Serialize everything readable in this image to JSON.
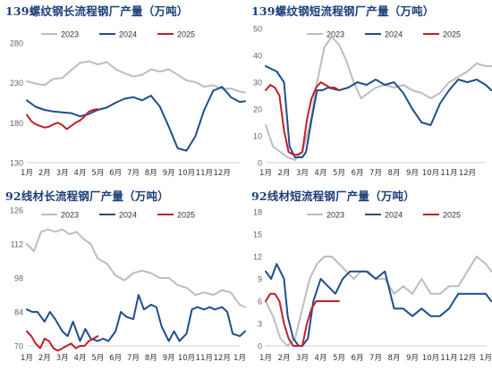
{
  "colors": {
    "y2023": "#bdbdbd",
    "y2024": "#1f4e8c",
    "y2025": "#c0202c",
    "title": "#1b3f78",
    "axis": "#666666"
  },
  "legend": [
    "2023",
    "2024",
    "2025"
  ],
  "months": [
    "1月",
    "2月",
    "3月",
    "4月",
    "5月",
    "6月",
    "7月",
    "8月",
    "9月",
    "10月",
    "11月",
    "12月",
    "1月"
  ],
  "chart_data": [
    {
      "type": "line",
      "title": "139螺纹钢长流程钢厂产量（万吨）",
      "ylim": [
        130,
        280
      ],
      "yticks": [
        130,
        180,
        230,
        280
      ],
      "xticks": [
        "1月",
        "2月",
        "3月",
        "4月",
        "5月",
        "6月",
        "7月",
        "8月",
        "9月",
        "10月",
        "11月",
        "12月"
      ],
      "series": [
        {
          "name": "2023",
          "x": [
            0,
            0.5,
            1,
            1.5,
            2,
            2.5,
            3,
            3.5,
            4,
            4.5,
            5,
            5.5,
            6,
            6.5,
            7,
            7.5,
            8,
            8.5,
            9,
            9.5,
            10,
            10.5,
            11,
            11.5,
            12,
            12.3
          ],
          "values": [
            232,
            229,
            227,
            235,
            236,
            246,
            255,
            257,
            253,
            256,
            247,
            242,
            238,
            240,
            247,
            244,
            247,
            240,
            233,
            231,
            225,
            227,
            222,
            223,
            219,
            218
          ]
        },
        {
          "name": "2024",
          "x": [
            0,
            0.5,
            1,
            1.5,
            2,
            2.5,
            3,
            3.5,
            4,
            4.5,
            5,
            5.5,
            6,
            6.5,
            7,
            7.5,
            8,
            8.5,
            9,
            9.5,
            10,
            10.5,
            11,
            11.5,
            12,
            12.3
          ],
          "values": [
            208,
            200,
            196,
            194,
            193,
            192,
            188,
            191,
            196,
            199,
            205,
            210,
            212,
            208,
            214,
            200,
            175,
            148,
            145,
            163,
            196,
            220,
            225,
            212,
            206,
            207
          ]
        },
        {
          "name": "2025",
          "x": [
            0,
            0.25,
            0.5,
            0.75,
            1,
            1.25,
            1.5,
            1.75,
            2,
            2.25,
            2.5,
            2.75,
            3,
            3.25,
            3.5,
            3.75,
            4
          ],
          "values": [
            190,
            182,
            178,
            176,
            174,
            175,
            178,
            180,
            177,
            172,
            176,
            180,
            183,
            188,
            194,
            196,
            197
          ]
        }
      ]
    },
    {
      "type": "line",
      "title": "139螺纹钢短流程钢厂产量（万吨）",
      "ylim": [
        0,
        50
      ],
      "yticks": [
        0,
        10,
        20,
        30,
        40,
        50
      ],
      "xticks": [
        "1月",
        "2月",
        "3月",
        "4月",
        "5月",
        "6月",
        "7月",
        "8月",
        "9月",
        "10月",
        "11月",
        "12月"
      ],
      "series": [
        {
          "name": "2023",
          "x": [
            0,
            0.4,
            0.8,
            1.2,
            1.6,
            2,
            2.4,
            2.8,
            3.2,
            3.6,
            4,
            4.4,
            4.8,
            5.2,
            5.6,
            6,
            6.5,
            7,
            7.5,
            8,
            8.5,
            9,
            9.5,
            10,
            10.5,
            11,
            11.5,
            12,
            12.3
          ],
          "values": [
            14,
            6,
            4,
            2,
            1,
            4,
            14,
            30,
            43,
            47,
            44,
            38,
            30,
            24,
            26,
            28,
            29,
            28,
            29,
            27,
            26,
            24,
            26,
            30,
            32,
            34,
            37,
            36,
            36
          ]
        },
        {
          "name": "2024",
          "x": [
            0,
            0.3,
            0.6,
            1,
            1.3,
            1.6,
            2,
            2.2,
            2.5,
            2.8,
            3.1,
            3.4,
            4,
            4.5,
            5,
            5.5,
            6,
            6.5,
            7,
            7.5,
            8,
            8.5,
            9,
            9.5,
            10,
            10.5,
            11,
            11.5,
            12,
            12.3
          ],
          "values": [
            36,
            35,
            34,
            30,
            6,
            2,
            2,
            4,
            16,
            27,
            27,
            28,
            27,
            28,
            30,
            29,
            31,
            29,
            30,
            26,
            20,
            15,
            14,
            22,
            27,
            31,
            30,
            31,
            29,
            27
          ]
        },
        {
          "name": "2025",
          "x": [
            0,
            0.25,
            0.5,
            0.75,
            1,
            1.25,
            1.5,
            1.75,
            2,
            2.25,
            2.5,
            2.75,
            3,
            3.25,
            3.5,
            3.75,
            4
          ],
          "values": [
            27,
            29,
            28,
            25,
            12,
            4,
            3,
            3,
            4,
            16,
            24,
            28,
            30,
            29,
            28,
            28,
            27
          ]
        }
      ]
    },
    {
      "type": "line",
      "title": "92线材长流程钢厂产量（万吨）",
      "ylim": [
        70,
        126
      ],
      "yticks": [
        70,
        84,
        98,
        112,
        126
      ],
      "xticks": [
        "1月",
        "2月",
        "3月",
        "4月",
        "5月",
        "6月",
        "7月",
        "8月",
        "9月",
        "10月",
        "11月",
        "12月",
        "1月"
      ],
      "series": [
        {
          "name": "2023",
          "x": [
            0,
            0.4,
            0.8,
            1.2,
            1.6,
            2,
            2.4,
            2.8,
            3.2,
            3.6,
            4,
            4.5,
            5,
            5.5,
            6,
            6.5,
            7,
            7.5,
            8,
            8.5,
            9,
            9.5,
            10,
            10.5,
            11,
            11.5,
            12,
            12.3
          ],
          "values": [
            112,
            109,
            117,
            118,
            117,
            118,
            116,
            117,
            114,
            112,
            106,
            104,
            99,
            97,
            100,
            101,
            100,
            98,
            98,
            95,
            94,
            91,
            92,
            91,
            93,
            92,
            87,
            86
          ]
        },
        {
          "name": "2024",
          "x": [
            0,
            0.3,
            0.6,
            1,
            1.3,
            1.6,
            2,
            2.3,
            2.6,
            3,
            3.3,
            3.6,
            4,
            4.3,
            4.6,
            5,
            5.3,
            5.6,
            6,
            6.3,
            6.6,
            7,
            7.3,
            7.6,
            8,
            8.3,
            8.6,
            9,
            9.3,
            9.6,
            10,
            10.3,
            10.6,
            11,
            11.3,
            11.6,
            12,
            12.3
          ],
          "values": [
            85,
            84,
            84,
            80,
            84,
            81,
            76,
            74,
            80,
            72,
            77,
            73,
            72,
            73,
            72,
            76,
            84,
            82,
            81,
            91,
            85,
            87,
            86,
            78,
            72,
            76,
            72,
            75,
            85,
            86,
            85,
            86,
            85,
            86,
            84,
            75,
            74,
            76
          ]
        },
        {
          "name": "2025",
          "x": [
            0,
            0.25,
            0.5,
            0.75,
            1,
            1.25,
            1.5,
            1.75,
            2,
            2.25,
            2.5,
            2.75,
            3,
            3.25,
            3.5,
            3.75,
            4
          ],
          "values": [
            76,
            74,
            71,
            69,
            73,
            72,
            69,
            68,
            69,
            70,
            71,
            69,
            70,
            70,
            72,
            73,
            74
          ]
        }
      ]
    },
    {
      "type": "line",
      "title": "92线材短流程钢厂产量（万吨）",
      "ylim": [
        0,
        18
      ],
      "yticks": [
        0,
        3,
        6,
        9,
        12,
        15,
        18
      ],
      "xticks": [
        "1月",
        "2月",
        "3月",
        "4月",
        "5月",
        "6月",
        "7月",
        "8月",
        "9月",
        "10月",
        "11月",
        "12月",
        "1月"
      ],
      "series": [
        {
          "name": "2023",
          "x": [
            0,
            0.4,
            0.8,
            1.2,
            1.6,
            2,
            2.4,
            2.8,
            3.2,
            3.6,
            4,
            4.4,
            4.8,
            5.2,
            5.6,
            6,
            6.5,
            7,
            7.5,
            8,
            8.5,
            9,
            9.5,
            10,
            10.5,
            11,
            11.5,
            12,
            12.3
          ],
          "values": [
            6,
            4,
            1,
            0,
            1,
            5,
            9,
            11,
            12,
            12,
            11,
            10,
            9,
            10,
            10,
            9,
            9,
            7,
            8,
            7,
            9,
            7,
            7,
            8,
            8,
            10,
            12,
            11,
            10
          ]
        },
        {
          "name": "2024",
          "x": [
            0,
            0.3,
            0.6,
            1,
            1.2,
            1.5,
            1.8,
            2,
            2.3,
            2.6,
            3,
            3.4,
            3.8,
            4.2,
            4.6,
            5,
            5.5,
            6,
            6.5,
            7,
            7.5,
            8,
            8.5,
            9,
            9.5,
            10,
            10.5,
            11,
            11.5,
            12,
            12.3
          ],
          "values": [
            10,
            9,
            11,
            9,
            4,
            1,
            0,
            0,
            1,
            6,
            9,
            8,
            7,
            9,
            10,
            10,
            10,
            9,
            10,
            5,
            5,
            4,
            5,
            4,
            4,
            5,
            7,
            7,
            7,
            7,
            6
          ]
        },
        {
          "name": "2025",
          "x": [
            0,
            0.25,
            0.5,
            0.75,
            1,
            1.25,
            1.5,
            1.75,
            2,
            2.25,
            2.5,
            2.75,
            3,
            3.25,
            3.5,
            3.75,
            4
          ],
          "values": [
            6,
            7,
            7,
            6,
            3,
            1,
            0,
            0,
            0,
            3,
            5,
            6,
            6,
            6,
            6,
            6,
            6
          ]
        }
      ]
    }
  ]
}
